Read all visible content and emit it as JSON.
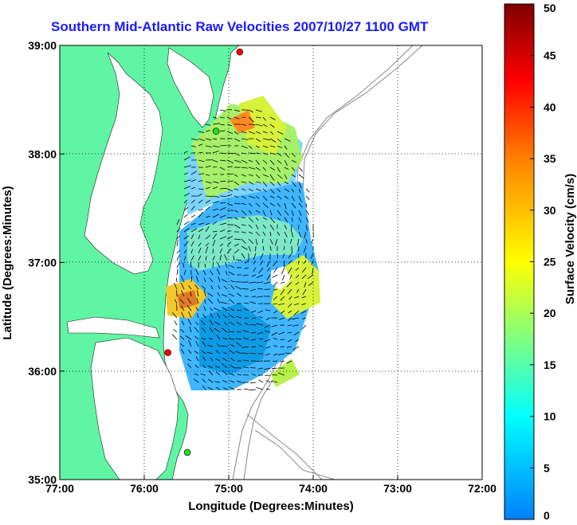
{
  "chart_data": {
    "type": "heatmap",
    "title": "Southern Mid-Atlantic Raw Velocities 2007/10/27 1100 GMT",
    "xlabel": "Longitude (Degrees:Minutes)",
    "ylabel": "Latitude (Degrees:Minutes)",
    "x_ticks": [
      "77:00",
      "76:00",
      "75:00",
      "74:00",
      "73:00",
      "72:00"
    ],
    "y_ticks": [
      "39:00",
      "38:00",
      "37:00",
      "36:00",
      "35:00"
    ],
    "xlim": [
      -77,
      -72
    ],
    "ylim": [
      35,
      39
    ],
    "grid": true,
    "colorbar": {
      "label": "Surface Velocity (cm/s)",
      "ticks": [
        "50",
        "45",
        "40",
        "35",
        "30",
        "25",
        "20",
        "15",
        "10",
        "5",
        "0"
      ],
      "range": [
        0,
        50
      ],
      "colors": [
        "#0080ff",
        "#00ffff",
        "#80ff80",
        "#ffff00",
        "#ff8000",
        "#ff0000",
        "#800000"
      ]
    },
    "land_color": "#5ff5a5",
    "stations": [
      {
        "lon": -74.87,
        "lat": 38.94,
        "color": "#ff0000"
      },
      {
        "lon": -75.15,
        "lat": 38.21,
        "color": "#22dd22"
      },
      {
        "lon": -75.72,
        "lat": 36.17,
        "color": "#ff0000"
      },
      {
        "lon": -75.49,
        "lat": 35.25,
        "color": "#22dd22"
      }
    ]
  }
}
